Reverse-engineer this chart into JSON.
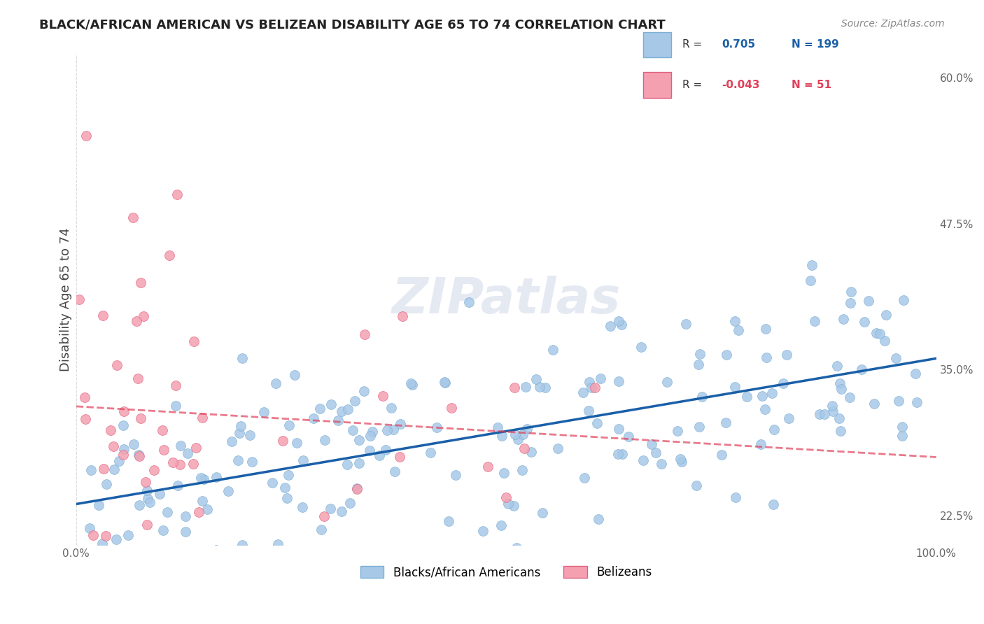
{
  "title": "BLACK/AFRICAN AMERICAN VS BELIZEAN DISABILITY AGE 65 TO 74 CORRELATION CHART",
  "source": "Source: ZipAtlas.com",
  "ylabel": "Disability Age 65 to 74",
  "xlim": [
    0,
    100
  ],
  "ylim": [
    20,
    62
  ],
  "yticks_right": [
    22.5,
    35.0,
    47.5,
    60.0
  ],
  "blue_R": 0.705,
  "blue_N": 199,
  "pink_R": -0.043,
  "pink_N": 51,
  "blue_color": "#a8c8e8",
  "blue_edge": "#7aafd4",
  "pink_color": "#f4a0b0",
  "pink_edge": "#e06080",
  "blue_line_color": "#1a5fa8",
  "pink_line_color": "#e0405a",
  "blue_marker_size": 10,
  "pink_marker_size": 10,
  "watermark": "ZIPatlas",
  "background_color": "#ffffff",
  "grid_color": "#cccccc",
  "legend_label_blue": "Blacks/African Americans",
  "legend_label_pink": "Belizeans",
  "blue_seed": 42,
  "pink_seed": 7
}
